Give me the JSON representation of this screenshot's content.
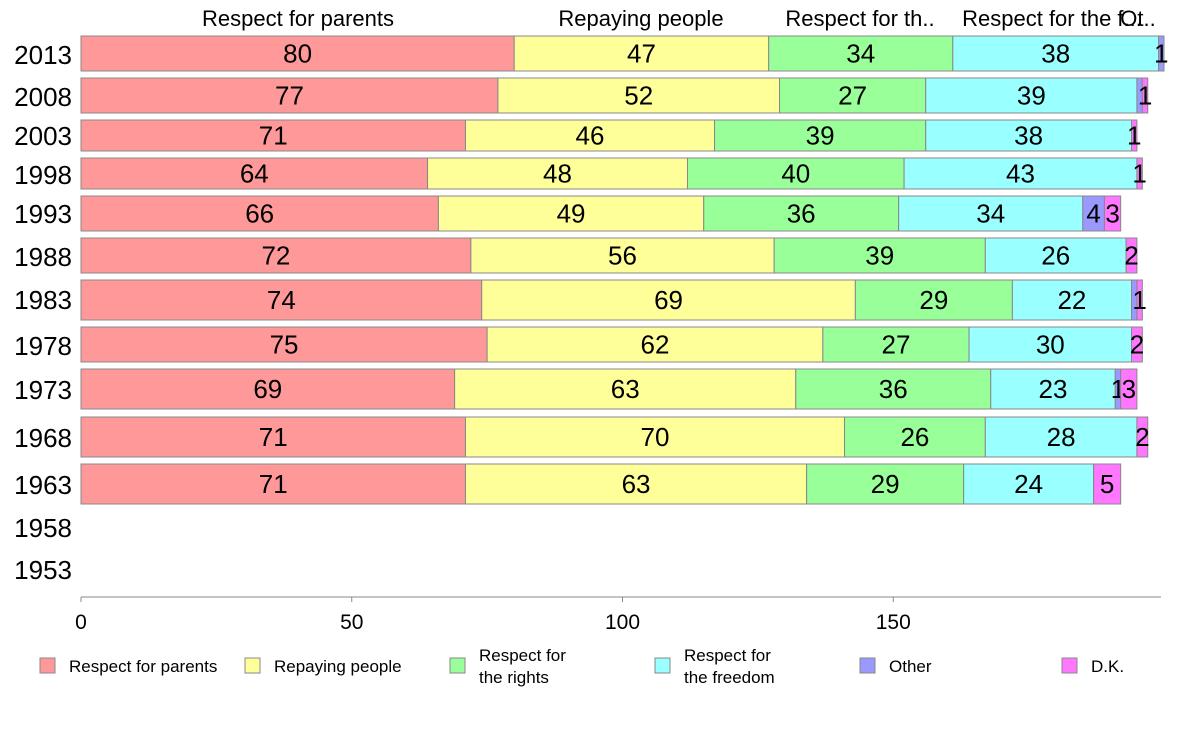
{
  "chart_data": {
    "type": "bar",
    "orientation": "horizontal",
    "stacked": true,
    "categories": [
      "2013",
      "2008",
      "2003",
      "1998",
      "1993",
      "1988",
      "1983",
      "1978",
      "1973",
      "1968",
      "1963",
      "1958",
      "1953"
    ],
    "series": [
      {
        "name": "Respect for parents",
        "color": "#ff9999",
        "values": [
          80,
          77,
          71,
          64,
          66,
          72,
          74,
          75,
          69,
          71,
          71,
          null,
          null
        ]
      },
      {
        "name": "Repaying people",
        "color": "#ffff99",
        "values": [
          47,
          52,
          46,
          48,
          49,
          56,
          69,
          62,
          63,
          70,
          63,
          null,
          null
        ]
      },
      {
        "name": "Respect for the rights",
        "color": "#99ff99",
        "values": [
          34,
          27,
          39,
          40,
          36,
          39,
          29,
          27,
          36,
          26,
          29,
          null,
          null
        ]
      },
      {
        "name": "Respect for the freedom",
        "color": "#99ffff",
        "values": [
          38,
          39,
          38,
          43,
          34,
          26,
          22,
          30,
          23,
          28,
          24,
          null,
          null
        ]
      },
      {
        "name": "Other",
        "color": "#9999ff",
        "values": [
          1,
          1,
          0,
          0,
          4,
          0,
          1,
          0,
          1,
          0,
          0,
          null,
          null
        ]
      },
      {
        "name": "D.K.",
        "color": "#ff77ff",
        "values": [
          0,
          1,
          1,
          1,
          3,
          2,
          1,
          2,
          3,
          2,
          5,
          null,
          null
        ]
      }
    ],
    "bar_labels": [
      [
        "80",
        "47",
        "34",
        "38",
        "1",
        ""
      ],
      [
        "77",
        "52",
        "27",
        "39",
        "",
        "1"
      ],
      [
        "71",
        "46",
        "39",
        "38",
        "",
        "1"
      ],
      [
        "64",
        "48",
        "40",
        "43",
        "",
        "1"
      ],
      [
        "66",
        "49",
        "36",
        "34",
        "4",
        "3"
      ],
      [
        "72",
        "56",
        "39",
        "26",
        "",
        "2"
      ],
      [
        "74",
        "69",
        "29",
        "22",
        "",
        "1"
      ],
      [
        "75",
        "62",
        "27",
        "30",
        "",
        "2"
      ],
      [
        "69",
        "63",
        "36",
        "23",
        "1",
        "3"
      ],
      [
        "71",
        "70",
        "26",
        "28",
        "",
        "2"
      ],
      [
        "71",
        "63",
        "29",
        "24",
        "",
        "5"
      ],
      [
        "",
        "",
        "",
        "",
        "",
        ""
      ],
      [
        "",
        "",
        "",
        "",
        "",
        ""
      ]
    ],
    "top_labels": [
      "Respect for parents",
      "Repaying people",
      "Respect for th..",
      "Respect for the f...",
      "Ot.."
    ],
    "x_ticks": [
      0,
      50,
      100,
      150
    ],
    "xlim": [
      0,
      200
    ],
    "legend": {
      "position": "bottom",
      "items": [
        {
          "lines": [
            "Respect for parents"
          ],
          "color": "#ff9999"
        },
        {
          "lines": [
            "Repaying people"
          ],
          "color": "#ffff99"
        },
        {
          "lines": [
            "Respect for",
            "the rights"
          ],
          "color": "#99ff99"
        },
        {
          "lines": [
            "Respect for",
            "the freedom"
          ],
          "color": "#99ffff"
        },
        {
          "lines": [
            "Other"
          ],
          "color": "#9999ff"
        },
        {
          "lines": [
            "D.K."
          ],
          "color": "#ff77ff"
        }
      ]
    },
    "grid": false
  }
}
